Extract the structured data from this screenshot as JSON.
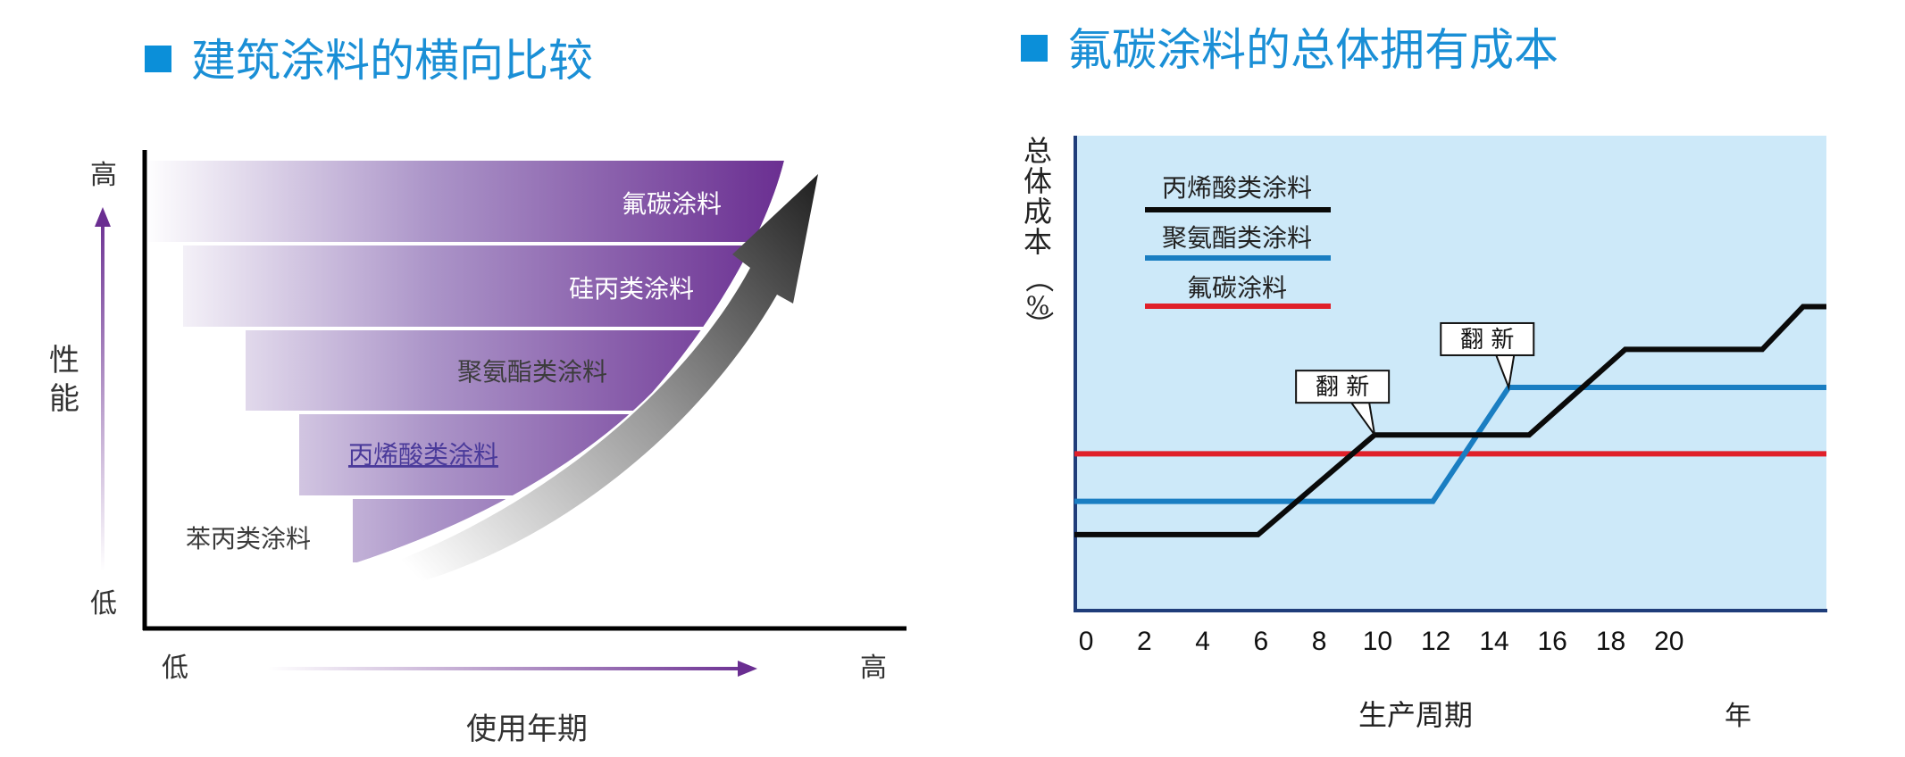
{
  "left": {
    "title": "建筑涂料的横向比较",
    "y_high": "高",
    "y_low": "低",
    "y_label_1": "性",
    "y_label_2": "能",
    "x_low": "低",
    "x_high": "高",
    "x_label": "使用年期",
    "bands": [
      "氟碳涂料",
      "硅丙类涂料",
      "聚氨酯类涂料",
      "丙烯酸类涂料",
      "苯丙类涂料"
    ],
    "colors": {
      "band_dark": "#6a2e91",
      "arrow_dark": "#2b2b2b",
      "axis": "#000000"
    }
  },
  "right": {
    "title": "氟碳涂料的总体拥有成本",
    "ylabel_chars": [
      "总",
      "体",
      "成",
      "本",
      "（",
      "%",
      "）"
    ],
    "xlabel": "生产周期",
    "xunit": "年",
    "annotations": [
      "翻 新",
      "翻 新"
    ],
    "colors": {
      "background": "#cde9f9",
      "frame": "#1f3d7a"
    }
  },
  "chart_data": {
    "type": "line",
    "title": "氟碳涂料的总体拥有成本",
    "xlabel": "生产周期",
    "xunit": "年",
    "ylabel": "总体成本（%）",
    "x_ticks": [
      0,
      2,
      4,
      6,
      8,
      10,
      12,
      14,
      16,
      18,
      20
    ],
    "xlim": [
      -0.4,
      25.4
    ],
    "ylim": [
      0,
      100
    ],
    "grid": false,
    "legend_position": "top-left",
    "series": [
      {
        "name": "丙烯酸类涂料",
        "color": "#0a0a0a",
        "points": [
          [
            -0.4,
            16
          ],
          [
            5.9,
            16
          ],
          [
            9.9,
            37
          ],
          [
            15.2,
            37
          ],
          [
            18.5,
            55
          ],
          [
            23.2,
            55
          ],
          [
            24.6,
            64
          ],
          [
            25.4,
            64
          ]
        ]
      },
      {
        "name": "聚氨酯类涂料",
        "color": "#1a7ec2",
        "points": [
          [
            -0.4,
            23
          ],
          [
            11.9,
            23
          ],
          [
            14.5,
            47
          ],
          [
            25.4,
            47
          ]
        ]
      },
      {
        "name": "氟碳涂料",
        "color": "#e0202a",
        "points": [
          [
            -0.4,
            33
          ],
          [
            25.4,
            33
          ]
        ]
      }
    ],
    "annotations": [
      {
        "text": "翻 新",
        "x": 9.9,
        "y": 37
      },
      {
        "text": "翻 新",
        "x": 14.5,
        "y": 47
      }
    ]
  }
}
